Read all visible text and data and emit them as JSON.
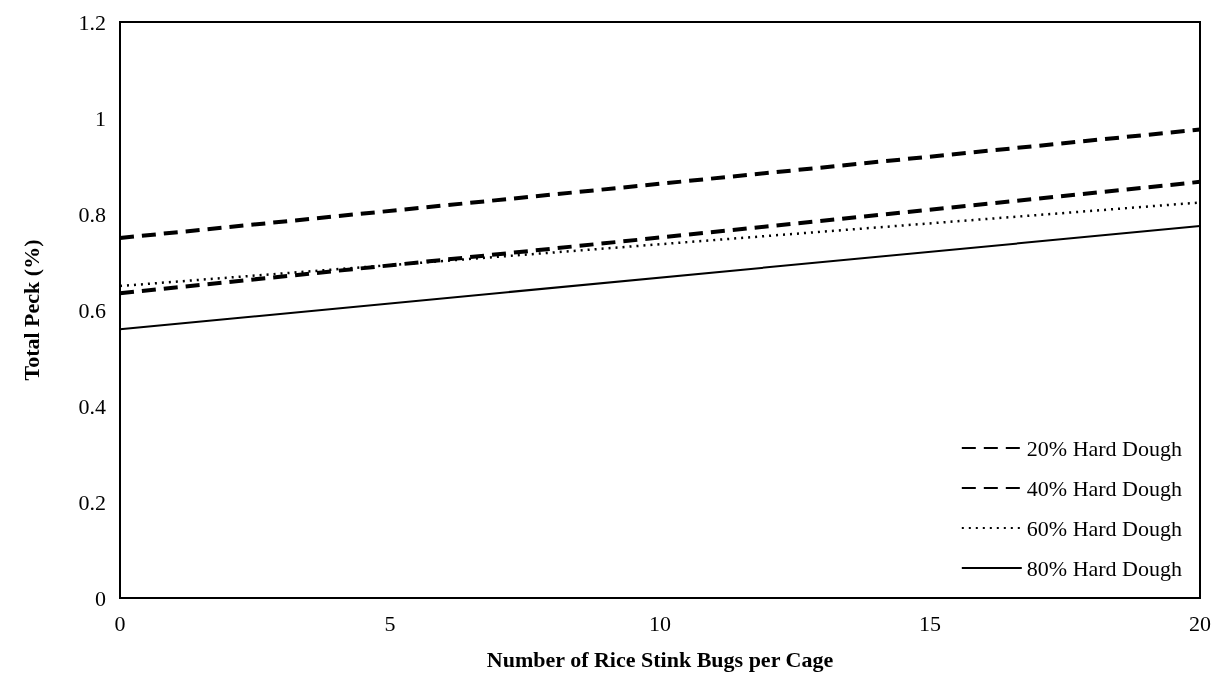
{
  "chart_data": {
    "type": "line",
    "xlabel": "Number of Rice Stink Bugs per Cage",
    "ylabel": "Total Peck (%)",
    "xlim": [
      0,
      20
    ],
    "xticks": [
      0,
      5,
      10,
      15,
      20
    ],
    "ylim": [
      0,
      1.2
    ],
    "yticks": [
      0,
      0.2,
      0.4,
      0.6,
      0.8,
      1,
      1.2
    ],
    "grid": false,
    "legend": "bottom right",
    "marker": "none",
    "x": [
      0,
      20
    ],
    "series": [
      {
        "name": "20% Hard Dough",
        "color": "#000000",
        "line_style": "dashed",
        "values": [
          0.75,
          0.976
        ]
      },
      {
        "name": "40% Hard Dough",
        "color": "#000000",
        "line_style": "dashed",
        "values": [
          0.635,
          0.867
        ]
      },
      {
        "name": "60% Hard Dough",
        "color": "#000000",
        "line_style": "dotted",
        "values": [
          0.65,
          0.824
        ]
      },
      {
        "name": "80% Hard Dough",
        "color": "#000000",
        "line_style": "solid",
        "values": [
          0.56,
          0.775
        ]
      }
    ]
  }
}
